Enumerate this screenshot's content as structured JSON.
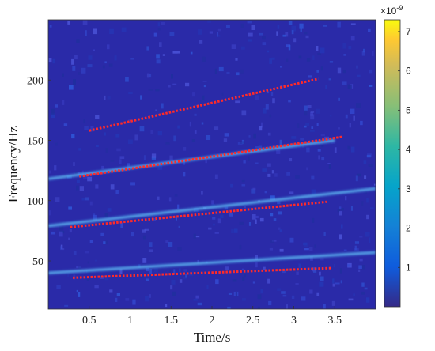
{
  "chart_data": {
    "type": "heatmap",
    "title": "",
    "xlabel": "Time/s",
    "ylabel": "Frequency/Hz",
    "xlim": [
      0,
      4
    ],
    "ylim": [
      10,
      250
    ],
    "x_ticks": [
      0.5,
      1,
      1.5,
      2,
      2.5,
      3,
      3.5
    ],
    "x_tick_labels": [
      "0.5",
      "1",
      "1.5",
      "2",
      "2.5",
      "3",
      "3.5"
    ],
    "y_ticks": [
      50,
      100,
      150,
      200
    ],
    "y_tick_labels": [
      "50",
      "100",
      "150",
      "200"
    ],
    "colorbar": {
      "range": [
        0,
        7.3
      ],
      "ticks": [
        1,
        2,
        3,
        4,
        5,
        6,
        7
      ],
      "tick_labels": [
        "1",
        "2",
        "3",
        "4",
        "5",
        "6",
        "7"
      ],
      "exponent_label": "×10",
      "exponent_value": "-9",
      "colormap": "parula"
    },
    "ridges": [
      {
        "start": [
          0.0,
          40
        ],
        "end": [
          4.0,
          57
        ]
      },
      {
        "start": [
          0.0,
          79
        ],
        "end": [
          4.0,
          110
        ]
      },
      {
        "start": [
          0.0,
          118
        ],
        "end": [
          3.5,
          150
        ]
      }
    ],
    "series": [
      {
        "color": "#ff2a2a",
        "style": "dotted",
        "x": [
          0.3,
          3.45
        ],
        "y": [
          36,
          44
        ]
      },
      {
        "color": "#ff2a2a",
        "style": "dotted",
        "x": [
          0.27,
          3.4
        ],
        "y": [
          78,
          99
        ]
      },
      {
        "color": "#ff2a2a",
        "style": "dotted",
        "x": [
          0.38,
          3.6
        ],
        "y": [
          120,
          153
        ]
      },
      {
        "color": "#ff2a2a",
        "style": "dotted",
        "x": [
          0.5,
          3.3
        ],
        "y": [
          158,
          201
        ]
      }
    ],
    "background_color": "#2a2aa8",
    "grid": false,
    "legend": "none"
  }
}
